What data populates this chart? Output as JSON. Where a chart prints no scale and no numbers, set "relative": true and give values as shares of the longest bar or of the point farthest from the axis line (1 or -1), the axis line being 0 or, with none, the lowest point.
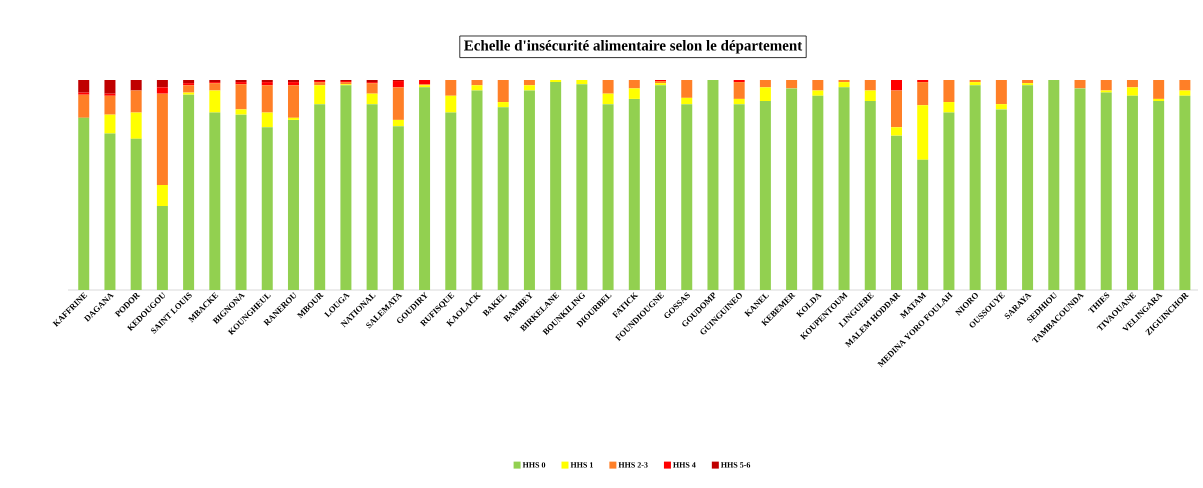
{
  "chart_data": {
    "type": "bar",
    "title": "Echelle d'insécurité alimentaire selon le département",
    "relative": true,
    "stacked": true,
    "legend": "bottom",
    "categories": [
      "KAFFRINE",
      "DAGANA",
      "PODOR",
      "KEDOUGOU",
      "SAINT LOUIS",
      "MBACKE",
      "BIGNONA",
      "KOUNGHEUL",
      "RANEROU",
      "MBOUR",
      "LOUGA",
      "NATIONAL",
      "SALEMATA",
      "GOUDIRY",
      "RUFISQUE",
      "KAOLACK",
      "BAKEL",
      "BAMBEY",
      "BIRKELANE",
      "BOUNKILING",
      "DIOURBEL",
      "FATICK",
      "FOUNDIOUGNE",
      "GOSSAS",
      "GOUDOMP",
      "GUINGUINEO",
      "KANEL",
      "KEBEMER",
      "KOLDA",
      "KOUPENTOUM",
      "LINGUERE",
      "MALEM HODDAR",
      "MATAM",
      "MEDINA YORO FOULAH",
      "NIORO",
      "OUSSOUYE",
      "SARAYA",
      "SEDHIOU",
      "TAMBACOUNDA",
      "THIES",
      "TIVAOUANE",
      "VELINGARA",
      "ZIGUINCHOR"
    ],
    "series": [
      {
        "name": "HHS 0",
        "color": "#92d050",
        "values": [
          0.82,
          0.745,
          0.72,
          0.4,
          0.93,
          0.845,
          0.835,
          0.775,
          0.81,
          0.885,
          0.975,
          0.885,
          0.78,
          0.965,
          0.845,
          0.95,
          0.87,
          0.95,
          0.99,
          0.98,
          0.885,
          0.91,
          0.975,
          0.885,
          1,
          0.885,
          0.9,
          0.96,
          0.925,
          0.965,
          0.9,
          0.735,
          0.62,
          0.845,
          0.975,
          0.86,
          0.975,
          1,
          0.96,
          0.94,
          0.925,
          0.9,
          0.925
        ]
      },
      {
        "name": "HHS 1",
        "color": "#ffff00",
        "values": [
          0,
          0.09,
          0.125,
          0.1,
          0.01,
          0.105,
          0.025,
          0.07,
          0.01,
          0.09,
          0.005,
          0.05,
          0.03,
          0.01,
          0.08,
          0.025,
          0.025,
          0.025,
          0.01,
          0.02,
          0.05,
          0.05,
          0.01,
          0.03,
          0,
          0.025,
          0.065,
          0,
          0.025,
          0.025,
          0.05,
          0.04,
          0.26,
          0.05,
          0.015,
          0.025,
          0.01,
          0,
          0,
          0.01,
          0.04,
          0.01,
          0.025
        ]
      },
      {
        "name": "HHS 2-3",
        "color": "#ff7f27",
        "values": [
          0.11,
          0.09,
          0.105,
          0.435,
          0.035,
          0.035,
          0.12,
          0.13,
          0.155,
          0.015,
          0.01,
          0.05,
          0.155,
          0.005,
          0.075,
          0.025,
          0.105,
          0.025,
          0,
          0,
          0.065,
          0.04,
          0.01,
          0.085,
          0,
          0.08,
          0.035,
          0.04,
          0.05,
          0.01,
          0.05,
          0.175,
          0.11,
          0.105,
          0.01,
          0.115,
          0.015,
          0,
          0.04,
          0.05,
          0.035,
          0.09,
          0.05
        ]
      },
      {
        "name": "HHS 4",
        "color": "#ff0000",
        "values": [
          0.01,
          0.01,
          0,
          0.03,
          0.01,
          0.005,
          0.01,
          0.015,
          0.015,
          0.005,
          0.005,
          0.005,
          0.03,
          0.02,
          0,
          0,
          0,
          0,
          0,
          0,
          0,
          0,
          0.005,
          0,
          0,
          0.01,
          0,
          0,
          0,
          0,
          0,
          0.05,
          0.01,
          0,
          0,
          0,
          0,
          0,
          0,
          0,
          0,
          0,
          0
        ]
      },
      {
        "name": "HHS 5-6",
        "color": "#c00000",
        "values": [
          0.06,
          0.065,
          0.05,
          0.035,
          0.015,
          0.01,
          0.01,
          0.01,
          0.01,
          0.005,
          0.005,
          0.01,
          0.005,
          0,
          0,
          0,
          0,
          0,
          0,
          0,
          0,
          0,
          0,
          0,
          0,
          0,
          0,
          0,
          0,
          0,
          0,
          0,
          0,
          0,
          0,
          0,
          0,
          0,
          0,
          0,
          0,
          0,
          0
        ]
      }
    ]
  }
}
